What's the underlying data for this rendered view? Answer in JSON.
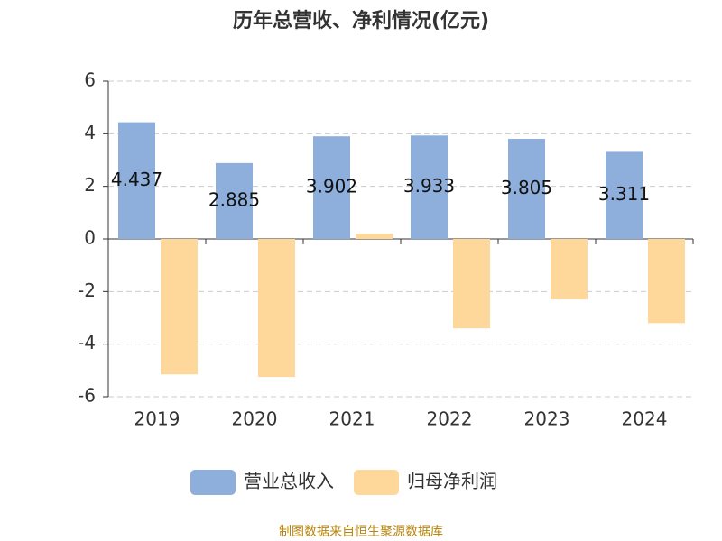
{
  "chart_data": {
    "type": "bar",
    "title": "历年总营收、净利情况(亿元)",
    "categories": [
      "2019",
      "2020",
      "2021",
      "2022",
      "2023",
      "2024"
    ],
    "series": [
      {
        "name": "营业总收入",
        "color": "#8eaedb",
        "values": [
          4.437,
          2.885,
          3.902,
          3.933,
          3.805,
          3.311
        ]
      },
      {
        "name": "归母净利润",
        "color": "#fdd89a",
        "values": [
          -5.15,
          -5.25,
          0.2,
          -3.4,
          -2.3,
          -3.2
        ]
      }
    ],
    "ylim": [
      -6,
      6
    ],
    "yticks": [
      -6,
      -4,
      -2,
      0,
      2,
      4,
      6
    ],
    "grid": true,
    "legend": "bottom",
    "source": "制图数据来自恒生聚源数据库"
  }
}
